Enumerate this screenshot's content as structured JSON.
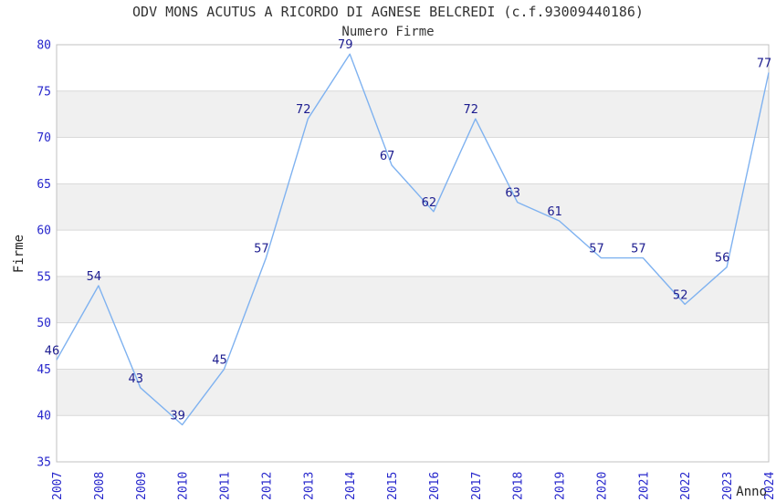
{
  "chart_data": {
    "type": "line",
    "title": "ODV MONS ACUTUS A RICORDO DI AGNESE BELCREDI (c.f.93009440186)",
    "subtitle": "Numero Firme",
    "xlabel": "Anno",
    "ylabel": "Firme",
    "categories": [
      "2007",
      "2008",
      "2009",
      "2010",
      "2011",
      "2012",
      "2013",
      "2014",
      "2015",
      "2016",
      "2017",
      "2018",
      "2019",
      "2020",
      "2021",
      "2022",
      "2023",
      "2024"
    ],
    "values": [
      46,
      54,
      43,
      39,
      45,
      57,
      72,
      79,
      67,
      62,
      72,
      63,
      61,
      57,
      57,
      52,
      56,
      77
    ],
    "ylim": [
      35,
      80
    ],
    "ytick_step": 5,
    "grid": true,
    "legend": "none",
    "band_fill_intervals": [
      [
        40,
        45
      ],
      [
        50,
        55
      ],
      [
        60,
        65
      ],
      [
        70,
        75
      ]
    ],
    "colors": {
      "line": "#7fb2f0",
      "data_label": "#1c1c8f",
      "tick_label": "#2727cc",
      "title": "#333333",
      "axis_name": "#222222",
      "band": "#f0f0f0",
      "gridline": "#d9d9d9",
      "border": "#c0c0c0",
      "background": "#ffffff"
    }
  }
}
